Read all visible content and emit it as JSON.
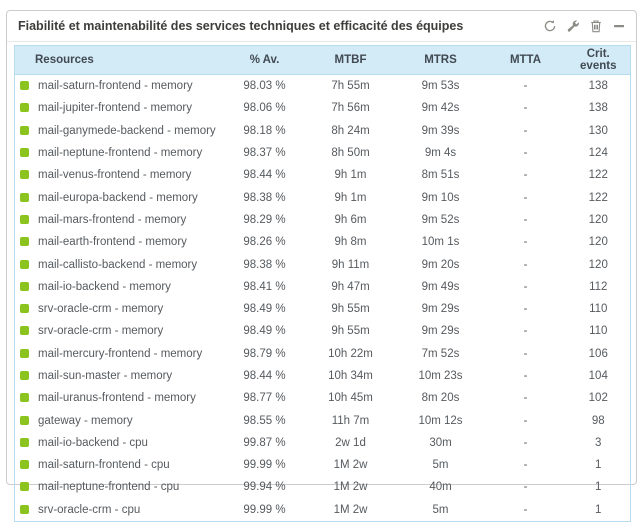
{
  "widget": {
    "title": "Fiabilité et maintenabilité des services techniques et efficacité des équipes"
  },
  "table": {
    "columns": [
      "Resources",
      "% Av.",
      "MTBF",
      "MTRS",
      "MTTA",
      "Crit. events"
    ],
    "rows": [
      {
        "status": "ok",
        "resource": "mail-saturn-frontend - memory",
        "availability": "98.03 %",
        "mtbf": "7h 55m",
        "mtrs": "9m 53s",
        "mtta": "-",
        "crit_events": 138
      },
      {
        "status": "ok",
        "resource": "mail-jupiter-frontend - memory",
        "availability": "98.06 %",
        "mtbf": "7h 56m",
        "mtrs": "9m 42s",
        "mtta": "-",
        "crit_events": 138
      },
      {
        "status": "ok",
        "resource": "mail-ganymede-backend - memory",
        "availability": "98.18 %",
        "mtbf": "8h 24m",
        "mtrs": "9m 39s",
        "mtta": "-",
        "crit_events": 130
      },
      {
        "status": "ok",
        "resource": "mail-neptune-frontend - memory",
        "availability": "98.37 %",
        "mtbf": "8h 50m",
        "mtrs": "9m 4s",
        "mtta": "-",
        "crit_events": 124
      },
      {
        "status": "ok",
        "resource": "mail-venus-frontend - memory",
        "availability": "98.44 %",
        "mtbf": "9h 1m",
        "mtrs": "8m 51s",
        "mtta": "-",
        "crit_events": 122
      },
      {
        "status": "ok",
        "resource": "mail-europa-backend - memory",
        "availability": "98.38 %",
        "mtbf": "9h 1m",
        "mtrs": "9m 10s",
        "mtta": "-",
        "crit_events": 122
      },
      {
        "status": "ok",
        "resource": "mail-mars-frontend - memory",
        "availability": "98.29 %",
        "mtbf": "9h 6m",
        "mtrs": "9m 52s",
        "mtta": "-",
        "crit_events": 120
      },
      {
        "status": "ok",
        "resource": "mail-earth-frontend - memory",
        "availability": "98.26 %",
        "mtbf": "9h 8m",
        "mtrs": "10m 1s",
        "mtta": "-",
        "crit_events": 120
      },
      {
        "status": "ok",
        "resource": "mail-callisto-backend - memory",
        "availability": "98.38 %",
        "mtbf": "9h 11m",
        "mtrs": "9m 20s",
        "mtta": "-",
        "crit_events": 120
      },
      {
        "status": "ok",
        "resource": "mail-io-backend - memory",
        "availability": "98.41 %",
        "mtbf": "9h 47m",
        "mtrs": "9m 49s",
        "mtta": "-",
        "crit_events": 112
      },
      {
        "status": "ok",
        "resource": "srv-oracle-crm - memory",
        "availability": "98.49 %",
        "mtbf": "9h 55m",
        "mtrs": "9m 29s",
        "mtta": "-",
        "crit_events": 110
      },
      {
        "status": "ok",
        "resource": "srv-oracle-crm - memory",
        "availability": "98.49 %",
        "mtbf": "9h 55m",
        "mtrs": "9m 29s",
        "mtta": "-",
        "crit_events": 110
      },
      {
        "status": "ok",
        "resource": "mail-mercury-frontend - memory",
        "availability": "98.79 %",
        "mtbf": "10h 22m",
        "mtrs": "7m 52s",
        "mtta": "-",
        "crit_events": 106
      },
      {
        "status": "ok",
        "resource": "mail-sun-master - memory",
        "availability": "98.44 %",
        "mtbf": "10h 34m",
        "mtrs": "10m 23s",
        "mtta": "-",
        "crit_events": 104
      },
      {
        "status": "ok",
        "resource": "mail-uranus-frontend - memory",
        "availability": "98.77 %",
        "mtbf": "10h 45m",
        "mtrs": "8m 20s",
        "mtta": "-",
        "crit_events": 102
      },
      {
        "status": "ok",
        "resource": "gateway - memory",
        "availability": "98.55 %",
        "mtbf": "11h 7m",
        "mtrs": "10m 12s",
        "mtta": "-",
        "crit_events": 98
      },
      {
        "status": "ok",
        "resource": "mail-io-backend - cpu",
        "availability": "99.87 %",
        "mtbf": "2w 1d",
        "mtrs": "30m",
        "mtta": "-",
        "crit_events": 3
      },
      {
        "status": "ok",
        "resource": "mail-saturn-frontend - cpu",
        "availability": "99.99 %",
        "mtbf": "1M 2w",
        "mtrs": "5m",
        "mtta": "-",
        "crit_events": 1
      },
      {
        "status": "ok",
        "resource": "mail-neptune-frontend - cpu",
        "availability": "99.94 %",
        "mtbf": "1M 2w",
        "mtrs": "40m",
        "mtta": "-",
        "crit_events": 1
      },
      {
        "status": "ok",
        "resource": "srv-oracle-crm - cpu",
        "availability": "99.99 %",
        "mtbf": "1M 2w",
        "mtrs": "5m",
        "mtta": "-",
        "crit_events": 1
      }
    ]
  },
  "colors": {
    "status_ok": "#8bc41e",
    "header_bg": "#d3eaf7",
    "table_border": "#b7dcee",
    "title_color": "#3d3d3b",
    "header_color": "#414a52",
    "cell_color": "#565a5e",
    "icon_color": "#8c8c87",
    "panel_border": "#cccccc"
  }
}
